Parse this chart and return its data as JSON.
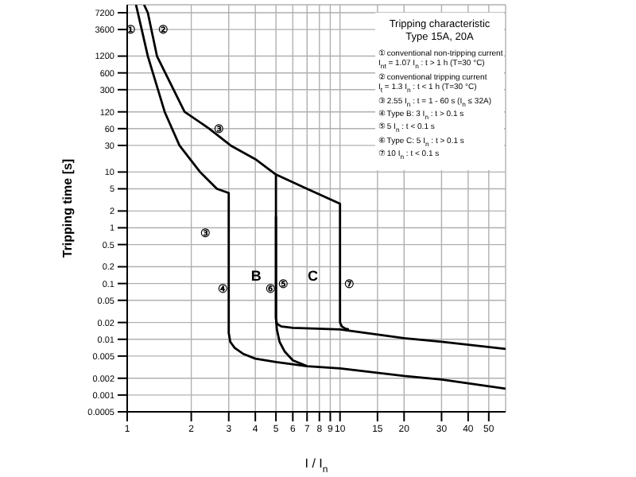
{
  "chart_data": {
    "type": "line",
    "title": "Tripping characteristic",
    "subtitle": "Type 15A, 20A",
    "xlabel": "I / I$_{n}$",
    "ylabel": "Tripping time [s]",
    "log": "xy",
    "grid": true,
    "marker": "none",
    "xlim": [
      1,
      60
    ],
    "xticks": [
      1,
      2,
      3,
      4,
      5,
      6,
      7,
      8,
      9,
      10,
      15,
      20,
      30,
      40,
      50
    ],
    "ylim": [
      0.0005,
      10000
    ],
    "yticks": [
      0.0005,
      0.001,
      0.002,
      0.005,
      0.01,
      0.02,
      0.05,
      0.1,
      0.2,
      0.5,
      1,
      2,
      5,
      10,
      30,
      60,
      120,
      300,
      600,
      1200,
      3600,
      7200
    ],
    "series": [
      {
        "color": "#000000",
        "x": [
          1.1,
          1.17,
          1.25,
          1.5,
          1.76,
          2.2,
          2.64,
          3,
          3,
          3.05,
          3.2,
          3.5,
          4,
          5,
          7,
          10,
          20,
          30,
          60
        ],
        "values": [
          10000,
          3600,
          1200,
          120,
          30,
          10,
          5,
          4.2,
          0.013,
          0.009,
          0.007,
          0.0055,
          0.0045,
          0.0039,
          0.0033,
          0.003,
          0.0022,
          0.0019,
          0.0013
        ]
      },
      {
        "color": "#000000",
        "x": [
          5,
          5,
          5.05,
          5.2,
          5.5,
          6,
          7
        ],
        "values": [
          1.6,
          0.024,
          0.015,
          0.009,
          0.006,
          0.0042,
          0.0033
        ]
      },
      {
        "color": "#000000",
        "x": [
          1.2,
          1.25,
          1.38,
          1.86,
          2.43,
          3.06,
          4,
          5,
          5,
          5.05,
          5.3,
          6,
          10,
          20,
          30,
          60
        ],
        "values": [
          10000,
          7200,
          1200,
          120,
          60,
          30,
          17,
          9,
          0.024,
          0.019,
          0.017,
          0.016,
          0.015,
          0.0105,
          0.009,
          0.0067
        ]
      },
      {
        "color": "#000000",
        "x": [
          5,
          7,
          10,
          10,
          10.2,
          10.6,
          11
        ],
        "values": [
          9,
          5,
          2.7,
          0.02,
          0.017,
          0.0155,
          0.015
        ]
      }
    ],
    "annotations": [
      {
        "text": "①",
        "x": 1.17,
        "y": 3600
      },
      {
        "text": "②",
        "x": 1.3,
        "y": 3600
      },
      {
        "text": "③",
        "x": 2.68,
        "y": 60
      },
      {
        "text": "③",
        "x": 3,
        "y": 0.8
      },
      {
        "text": "④",
        "x": 2.8,
        "y": 0.08
      },
      {
        "text": "⑥",
        "x": 4.7,
        "y": 0.08
      },
      {
        "text": "⑤",
        "x": 5.4,
        "y": 0.1
      },
      {
        "text": "⑦",
        "x": 11,
        "y": 0.1
      },
      {
        "text": "B",
        "x": 3,
        "y": 0.14
      },
      {
        "text": "C",
        "x": 5,
        "y": 0.14
      },
      "① conventional non-tripping current",
      "I$_{nt}$ = 1.07 I$_{n}$ : t > 1 h  (T=30 °C)",
      "② conventional tripping current",
      "I$_{t}$ = 1.3 I$_{n}$ : t < 1 h  (T=30 °C)",
      "③ 2.55 I$_{n}$ : t = 1 - 60 s (I$_{n}$ ≤ 32A)",
      "④ Type B: 3 I$_{n}$ : t > 0.1 s",
      "⑤ 5 I$_{n}$ : t < 0.1 s",
      "⑥ Type C: 5 I$_{n}$ : t > 0.1 s",
      "⑦ 10 I$_{n}$ : t < 0.1 s"
    ]
  }
}
